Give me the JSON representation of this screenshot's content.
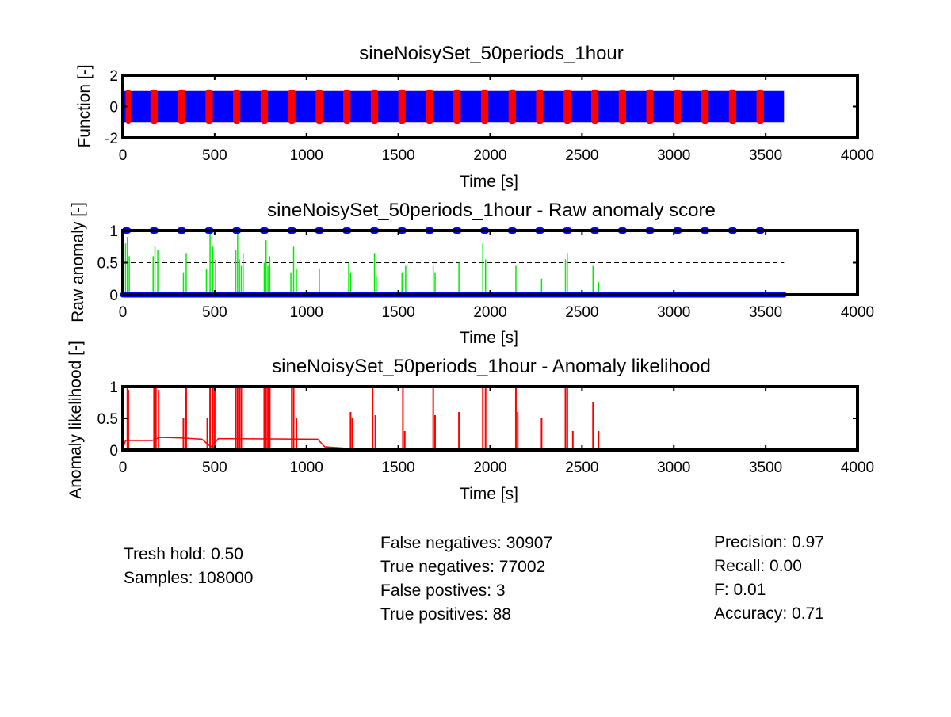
{
  "chart_data": [
    {
      "type": "line",
      "title": "sineNoisySet_50periods_1hour",
      "xlabel": "Time [s]",
      "ylabel": "Function [-]",
      "xlim": [
        0,
        4000
      ],
      "ylim": [
        -2,
        2
      ],
      "xticks": [
        "0",
        "500",
        "1000",
        "1500",
        "2000",
        "2500",
        "3000",
        "3500",
        "4000"
      ],
      "yticks": [
        "-2",
        "0",
        "2"
      ],
      "grid": false,
      "series": [
        {
          "color": "#0000ff",
          "description": "noisy sine signal, 50 periods over 3600 s, amplitude 1",
          "x_range": [
            0,
            3600
          ],
          "amplitude": 1
        },
        {
          "color": "#ff0000",
          "description": "labeled anomaly segments",
          "segments": [
            [
              15,
              45
            ],
            [
              150,
              190
            ],
            [
              300,
              340
            ],
            [
              450,
              490
            ],
            [
              600,
              640
            ],
            [
              750,
              790
            ],
            [
              900,
              940
            ],
            [
              1050,
              1090
            ],
            [
              1200,
              1240
            ],
            [
              1350,
              1390
            ],
            [
              1500,
              1540
            ],
            [
              1650,
              1690
            ],
            [
              1800,
              1840
            ],
            [
              1950,
              1990
            ],
            [
              2100,
              2140
            ],
            [
              2250,
              2290
            ],
            [
              2400,
              2440
            ],
            [
              2550,
              2590
            ],
            [
              2700,
              2740
            ],
            [
              2850,
              2890
            ],
            [
              3000,
              3040
            ],
            [
              3150,
              3190
            ],
            [
              3300,
              3340
            ],
            [
              3450,
              3490
            ]
          ],
          "amplitude": 1
        }
      ]
    },
    {
      "type": "line",
      "title": "sineNoisySet_50periods_1hour - Raw anomaly score",
      "xlabel": "Time [s]",
      "ylabel": "Raw anomaly [-]",
      "xlim": [
        0,
        4000
      ],
      "ylim": [
        0,
        1
      ],
      "xticks": [
        "0",
        "500",
        "1000",
        "1500",
        "2000",
        "2500",
        "3000",
        "3500",
        "4000"
      ],
      "yticks": [
        "0",
        "0.5",
        "1"
      ],
      "threshold": 0.5,
      "grid": false,
      "series": [
        {
          "color": "#00ee00",
          "description": "raw anomaly score spikes",
          "spikes": [
            [
              15,
              0.8
            ],
            [
              25,
              0.9
            ],
            [
              35,
              0.6
            ],
            [
              165,
              0.6
            ],
            [
              175,
              0.75
            ],
            [
              190,
              0.7
            ],
            [
              330,
              0.35
            ],
            [
              345,
              0.65
            ],
            [
              455,
              0.4
            ],
            [
              475,
              0.95
            ],
            [
              490,
              0.75
            ],
            [
              505,
              0.55
            ],
            [
              615,
              0.7
            ],
            [
              625,
              0.95
            ],
            [
              635,
              0.55
            ],
            [
              645,
              0.45
            ],
            [
              655,
              0.65
            ],
            [
              770,
              0.5
            ],
            [
              780,
              0.85
            ],
            [
              790,
              0.45
            ],
            [
              800,
              0.6
            ],
            [
              915,
              0.35
            ],
            [
              930,
              0.75
            ],
            [
              945,
              0.4
            ],
            [
              1070,
              0.4
            ],
            [
              1230,
              0.5
            ],
            [
              1240,
              0.35
            ],
            [
              1370,
              0.65
            ],
            [
              1380,
              0.3
            ],
            [
              1520,
              0.35
            ],
            [
              1540,
              0.45
            ],
            [
              1690,
              0.45
            ],
            [
              1700,
              0.35
            ],
            [
              1830,
              0.5
            ],
            [
              1960,
              0.8
            ],
            [
              1975,
              0.55
            ],
            [
              2140,
              0.45
            ],
            [
              2280,
              0.25
            ],
            [
              2410,
              0.55
            ],
            [
              2420,
              0.65
            ],
            [
              2560,
              0.45
            ],
            [
              2590,
              0.2
            ]
          ]
        },
        {
          "color": "#0000ff",
          "description": "binary anomaly labels (markers at 0 or 1)",
          "high_segments": [
            [
              0,
              40
            ],
            [
              150,
              190
            ],
            [
              300,
              340
            ],
            [
              450,
              490
            ],
            [
              600,
              640
            ],
            [
              750,
              790
            ],
            [
              900,
              940
            ],
            [
              1050,
              1090
            ],
            [
              1200,
              1240
            ],
            [
              1350,
              1390
            ],
            [
              1500,
              1540
            ],
            [
              1650,
              1690
            ],
            [
              1800,
              1840
            ],
            [
              1950,
              1990
            ],
            [
              2100,
              2140
            ],
            [
              2250,
              2290
            ],
            [
              2400,
              2440
            ],
            [
              2550,
              2590
            ],
            [
              2700,
              2740
            ],
            [
              2850,
              2890
            ],
            [
              3000,
              3040
            ],
            [
              3150,
              3190
            ],
            [
              3300,
              3340
            ],
            [
              3450,
              3490
            ]
          ],
          "x_range": [
            0,
            3600
          ]
        }
      ]
    },
    {
      "type": "line",
      "title": "sineNoisySet_50periods_1hour - Anomaly likelihood",
      "xlabel": "Time [s]",
      "ylabel": "Anomaly likelihood [-]",
      "xlim": [
        0,
        4000
      ],
      "ylim": [
        0,
        1
      ],
      "xticks": [
        "0",
        "500",
        "1000",
        "1500",
        "2000",
        "2500",
        "3000",
        "3500",
        "4000"
      ],
      "yticks": [
        "0",
        "0.5",
        "1"
      ],
      "grid": false,
      "series": [
        {
          "color": "#ff0000",
          "description": "anomaly likelihood",
          "baseline": [
            [
              0,
              0.02
            ],
            [
              15,
              0.15
            ],
            [
              160,
              0.15
            ],
            [
              200,
              0.2
            ],
            [
              320,
              0.19
            ],
            [
              430,
              0.17
            ],
            [
              480,
              0.05
            ],
            [
              520,
              0.18
            ],
            [
              1060,
              0.17
            ],
            [
              1100,
              0.05
            ],
            [
              1200,
              0.03
            ],
            [
              3600,
              0.02
            ]
          ],
          "spikes": [
            [
              25,
              1
            ],
            [
              30,
              0.95
            ],
            [
              170,
              1
            ],
            [
              180,
              1
            ],
            [
              195,
              0.95
            ],
            [
              330,
              0.5
            ],
            [
              345,
              1
            ],
            [
              460,
              0.5
            ],
            [
              475,
              1
            ],
            [
              490,
              1
            ],
            [
              500,
              1
            ],
            [
              615,
              1
            ],
            [
              625,
              1
            ],
            [
              635,
              1
            ],
            [
              645,
              1
            ],
            [
              770,
              1
            ],
            [
              780,
              1
            ],
            [
              790,
              1
            ],
            [
              800,
              1
            ],
            [
              920,
              1
            ],
            [
              930,
              1
            ],
            [
              945,
              0.5
            ],
            [
              1240,
              0.6
            ],
            [
              1250,
              0.5
            ],
            [
              1360,
              1
            ],
            [
              1375,
              0.55
            ],
            [
              1525,
              1
            ],
            [
              1535,
              0.3
            ],
            [
              1690,
              1
            ],
            [
              1700,
              0.55
            ],
            [
              1830,
              0.6
            ],
            [
              1960,
              1
            ],
            [
              1975,
              1
            ],
            [
              2140,
              1
            ],
            [
              2150,
              0.6
            ],
            [
              2280,
              0.5
            ],
            [
              2410,
              1
            ],
            [
              2420,
              1
            ],
            [
              2450,
              0.3
            ],
            [
              2560,
              0.75
            ],
            [
              2590,
              0.3
            ]
          ]
        }
      ]
    }
  ],
  "stats": {
    "threshold": "Tresh hold: 0.50",
    "samples": "Samples: 108000",
    "false_negatives": "False negatives: 30907",
    "true_negatives": "True negatives: 77002",
    "false_positives": "False postives: 3",
    "true_positives": "True positives: 88",
    "precision": "Precision: 0.97",
    "recall": "Recall: 0.00",
    "f": "F: 0.01",
    "accuracy": "Accuracy: 0.71"
  }
}
